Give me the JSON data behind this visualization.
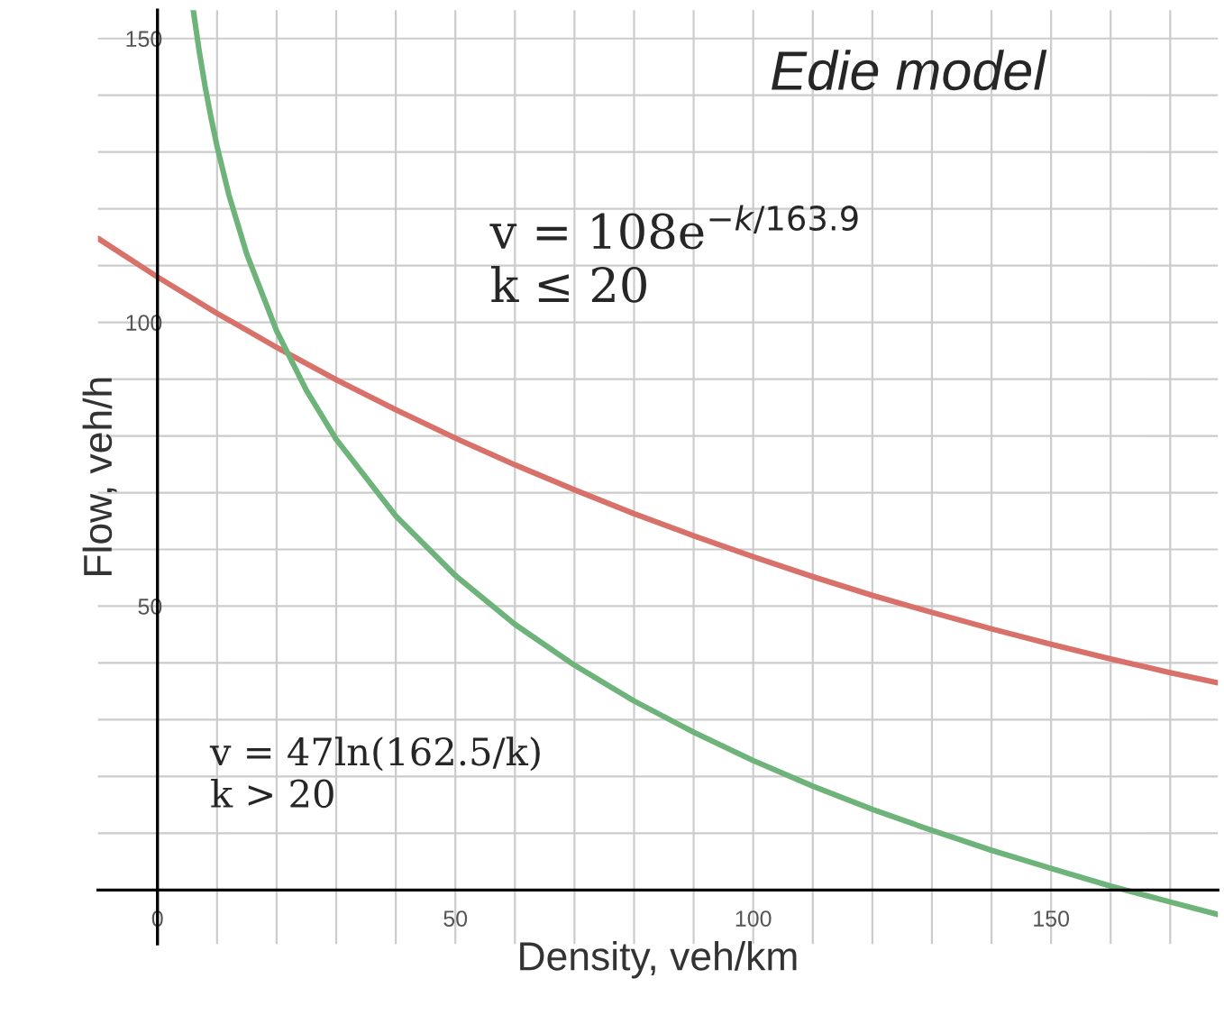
{
  "chart_data": {
    "type": "line",
    "xlabel": "Density, veh/km",
    "ylabel": "Flow, veh/h",
    "annotations": [
      "Edie model",
      "v = 108e$^{−k/163.9}$\nk ≤ 20",
      "v = 47ln(162.5/k)\nk > 20"
    ],
    "xlim": [
      -10,
      178
    ],
    "ylim": [
      -9.5,
      155
    ],
    "xticks": [
      0,
      {
        "value": 10,
        "label": null
      },
      {
        "value": 20,
        "label": null
      },
      {
        "value": 30,
        "label": null
      },
      {
        "value": 40,
        "label": null
      },
      50,
      {
        "value": 60,
        "label": null
      },
      {
        "value": 70,
        "label": null
      },
      {
        "value": 80,
        "label": null
      },
      {
        "value": 90,
        "label": null
      },
      100,
      {
        "value": 110,
        "label": null
      },
      {
        "value": 120,
        "label": null
      },
      {
        "value": 130,
        "label": null
      },
      {
        "value": 140,
        "label": null
      },
      150,
      {
        "value": 160,
        "label": null
      },
      {
        "value": 170,
        "label": null
      }
    ],
    "yticks": [
      {
        "value": 10,
        "label": null
      },
      {
        "value": 20,
        "label": null
      },
      {
        "value": 30,
        "label": null
      },
      {
        "value": 40,
        "label": null
      },
      50,
      {
        "value": 60,
        "label": null
      },
      {
        "value": 70,
        "label": null
      },
      {
        "value": 80,
        "label": null
      },
      {
        "value": 90,
        "label": null
      },
      100,
      {
        "value": 110,
        "label": null
      },
      {
        "value": 120,
        "label": null
      },
      {
        "value": 130,
        "label": null
      },
      {
        "value": 140,
        "label": null
      },
      150
    ],
    "grid": true,
    "series": [
      {
        "color": "#d9716b",
        "x": [
          -10,
          0,
          10,
          20,
          30,
          40,
          50,
          60,
          70,
          80,
          90,
          100,
          110,
          120,
          130,
          140,
          150,
          160,
          170,
          178
        ],
        "values": [
          114.8,
          108.0,
          101.6,
          95.6,
          89.9,
          84.6,
          79.6,
          74.9,
          70.5,
          66.3,
          62.4,
          58.7,
          55.2,
          51.9,
          48.9,
          46.0,
          43.3,
          40.7,
          38.3,
          36.5
        ]
      },
      {
        "color": "#6db37a",
        "x": [
          6,
          7,
          8,
          9,
          10,
          12,
          15,
          20,
          25,
          30,
          40,
          50,
          60,
          70,
          80,
          90,
          100,
          110,
          120,
          130,
          140,
          150,
          160,
          170,
          178
        ],
        "values": [
          155.0,
          147.8,
          141.5,
          136.0,
          131.0,
          122.4,
          112.0,
          98.5,
          88.0,
          79.4,
          65.9,
          55.4,
          46.8,
          39.6,
          33.3,
          27.8,
          22.8,
          18.3,
          14.2,
          10.5,
          7.0,
          3.8,
          0.7,
          -2.1,
          -4.3
        ]
      }
    ]
  }
}
